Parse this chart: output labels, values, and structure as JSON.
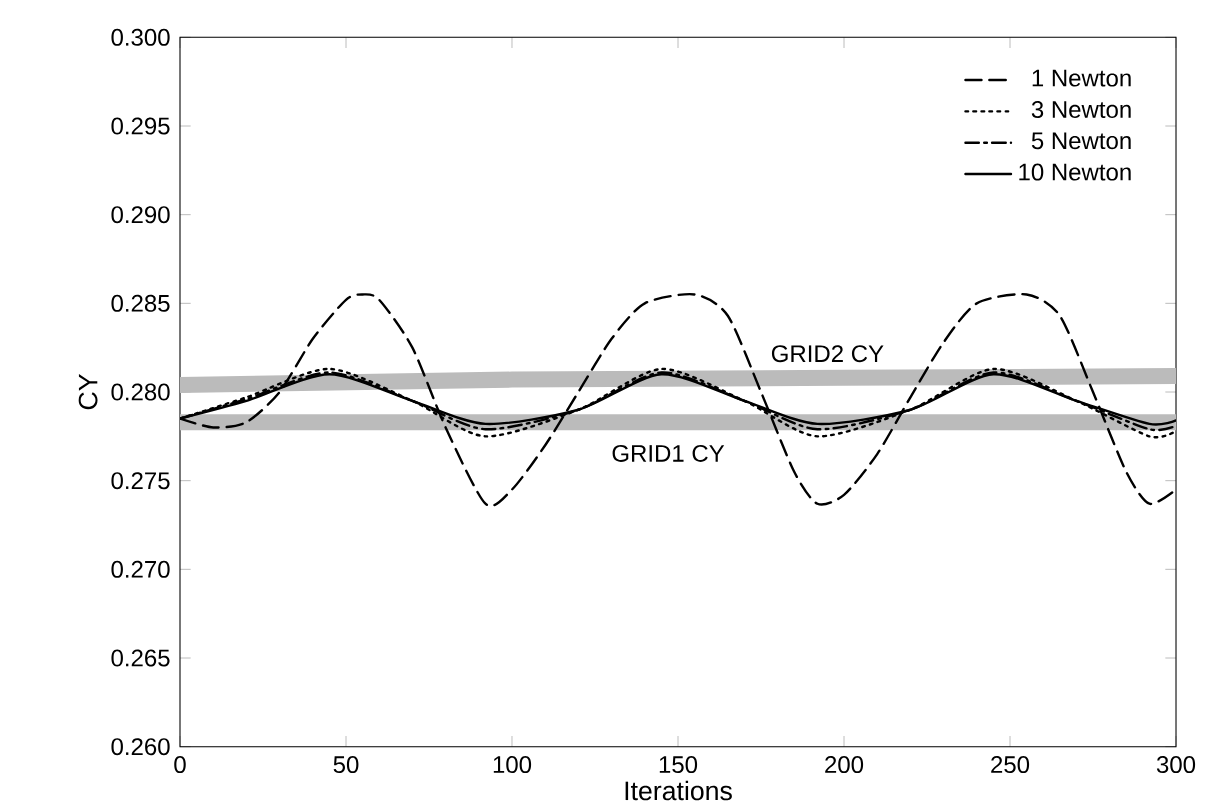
{
  "chart_data": {
    "type": "line",
    "xlabel": "Iterations",
    "ylabel": "CY",
    "xlim": [
      0,
      300
    ],
    "ylim": [
      0.26,
      0.3
    ],
    "xticks": [
      0,
      50,
      100,
      150,
      200,
      250,
      300
    ],
    "yticks": [
      {
        "value": 0.26,
        "label": "0.260"
      },
      {
        "value": 0.265,
        "label": "0.265"
      },
      {
        "value": 0.27,
        "label": "0.270"
      },
      {
        "value": 0.275,
        "label": "0.275"
      },
      {
        "value": 0.28,
        "label": "0.280"
      },
      {
        "value": 0.285,
        "label": "0.285"
      },
      {
        "value": 0.29,
        "label": "0.290"
      },
      {
        "value": 0.295,
        "label": "0.295"
      },
      {
        "value": 0.3,
        "label": "0.300"
      }
    ],
    "grid": false,
    "legend": "top right",
    "marker": "none",
    "series": [
      {
        "name": "GRID2 CY",
        "color": "#bbbbbb",
        "line_style": "solid",
        "x": [
          0,
          100,
          200,
          300
        ],
        "values": [
          0.2804,
          0.2807,
          0.2808,
          0.2809
        ]
      },
      {
        "name": "GRID1 CY",
        "color": "#bbbbbb",
        "line_style": "solid",
        "x": [
          0,
          100,
          200,
          300
        ],
        "values": [
          0.2783,
          0.2783,
          0.2783,
          0.2783
        ]
      },
      {
        "name": "1 Newton",
        "color": "#000000",
        "line_style": "dashed",
        "x": [
          0,
          10,
          20,
          30,
          40,
          50,
          55,
          60,
          70,
          80,
          92,
          100,
          110,
          120,
          130,
          140,
          155,
          165,
          175,
          185,
          192,
          200,
          210,
          220,
          230,
          240,
          255,
          265,
          275,
          285,
          292,
          300
        ],
        "values": [
          0.2785,
          0.278,
          0.2783,
          0.28,
          0.283,
          0.2852,
          0.2855,
          0.2852,
          0.2825,
          0.278,
          0.2737,
          0.2745,
          0.277,
          0.28,
          0.283,
          0.285,
          0.2855,
          0.2843,
          0.28,
          0.2755,
          0.2737,
          0.2742,
          0.2765,
          0.2797,
          0.2828,
          0.285,
          0.2855,
          0.2843,
          0.28,
          0.2755,
          0.2737,
          0.2745
        ]
      },
      {
        "name": "3 Newton",
        "color": "#000000",
        "line_style": "dotted",
        "x": [
          0,
          20,
          45,
          70,
          92,
          120,
          145,
          170,
          192,
          220,
          245,
          270,
          292,
          300
        ],
        "values": [
          0.2785,
          0.2797,
          0.2813,
          0.2795,
          0.2775,
          0.279,
          0.2813,
          0.2795,
          0.2775,
          0.279,
          0.2813,
          0.2795,
          0.2775,
          0.2778
        ]
      },
      {
        "name": "5 Newton",
        "color": "#000000",
        "line_style": "dashdot",
        "x": [
          0,
          20,
          45,
          70,
          92,
          120,
          145,
          170,
          192,
          220,
          245,
          270,
          292,
          300
        ],
        "values": [
          0.2785,
          0.2796,
          0.2811,
          0.2795,
          0.2779,
          0.279,
          0.2811,
          0.2795,
          0.2779,
          0.279,
          0.2811,
          0.2795,
          0.2779,
          0.2781
        ]
      },
      {
        "name": "10 Newton",
        "color": "#000000",
        "line_style": "solid",
        "x": [
          0,
          20,
          45,
          70,
          92,
          120,
          145,
          170,
          192,
          220,
          245,
          270,
          292,
          300
        ],
        "values": [
          0.2785,
          0.2795,
          0.281,
          0.2795,
          0.2782,
          0.279,
          0.281,
          0.2795,
          0.2782,
          0.279,
          0.281,
          0.2795,
          0.2782,
          0.2784
        ]
      }
    ]
  }
}
